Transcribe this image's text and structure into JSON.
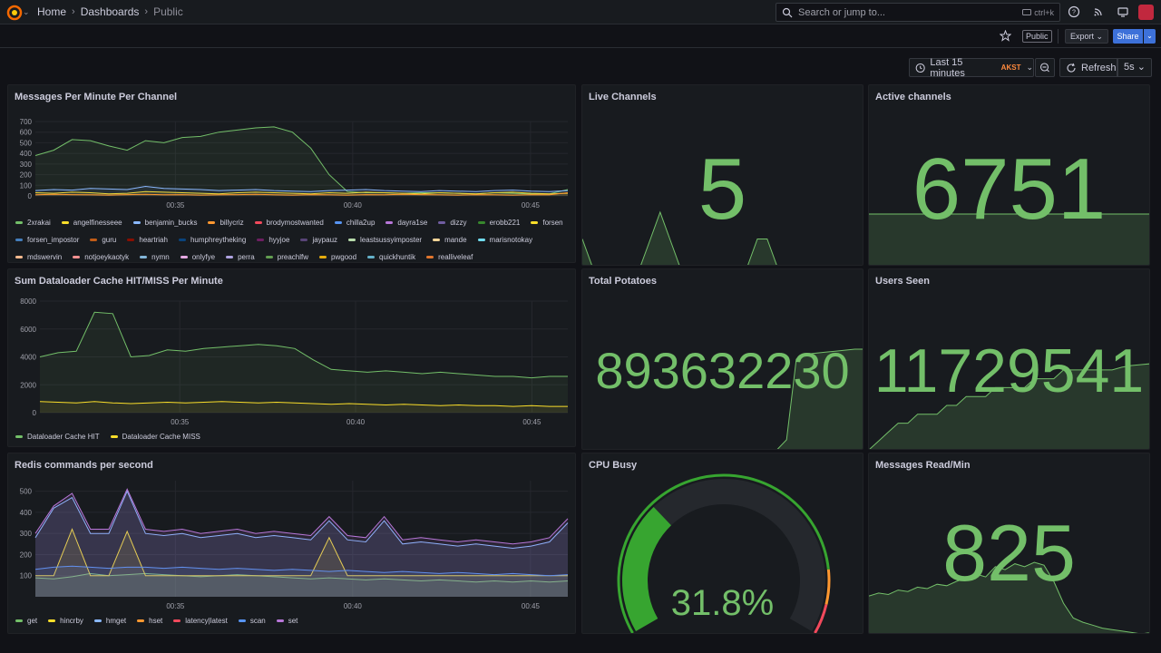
{
  "nav": {
    "breadcrumbs": [
      "Home",
      "Dashboards",
      "Public"
    ],
    "search_placeholder": "Search or jump to...",
    "search_shortcut": "ctrl+k"
  },
  "toolbar": {
    "public_badge": "Public",
    "export_label": "Export",
    "share_label": "Share"
  },
  "timecontrols": {
    "range_label": "Last 15 minutes",
    "timezone": "AKST",
    "refresh_label": "Refresh",
    "interval": "5s"
  },
  "panels": {
    "messages_per_minute": {
      "title": "Messages Per Minute Per Channel",
      "legend": [
        {
          "name": "2xrakai",
          "color": "#73bf69"
        },
        {
          "name": "angelfinesseee",
          "color": "#fade2a"
        },
        {
          "name": "benjamin_bucks",
          "color": "#8ab8ff"
        },
        {
          "name": "billycriz",
          "color": "#ff9830"
        },
        {
          "name": "brodymostwanted",
          "color": "#f2495c"
        },
        {
          "name": "chilla2up",
          "color": "#5794f2"
        },
        {
          "name": "dayra1se",
          "color": "#b877d9"
        },
        {
          "name": "dizzy",
          "color": "#705da0"
        },
        {
          "name": "erobb221",
          "color": "#37872d"
        },
        {
          "name": "forsen",
          "color": "#fade2a"
        },
        {
          "name": "forsen_impostor",
          "color": "#447ebc"
        },
        {
          "name": "guru",
          "color": "#c15c17"
        },
        {
          "name": "heartriah",
          "color": "#890f02"
        },
        {
          "name": "humphreytheking",
          "color": "#0a437c"
        },
        {
          "name": "hyyjoe",
          "color": "#6d1f62"
        },
        {
          "name": "jaypauz",
          "color": "#584477"
        },
        {
          "name": "leastsussyimposter",
          "color": "#b7dbab"
        },
        {
          "name": "mande",
          "color": "#f4d598"
        },
        {
          "name": "marisnotokay",
          "color": "#70dbed"
        },
        {
          "name": "mdswervin",
          "color": "#f9ba8f"
        },
        {
          "name": "notjoeykaotyk",
          "color": "#f29191"
        },
        {
          "name": "nymn",
          "color": "#82b5d8"
        },
        {
          "name": "onlyfye",
          "color": "#e5a8e2"
        },
        {
          "name": "perra",
          "color": "#aea2e0"
        },
        {
          "name": "preachlfw",
          "color": "#629e51"
        },
        {
          "name": "pwgood",
          "color": "#e5ac0e"
        },
        {
          "name": "quickhuntik",
          "color": "#64b0c8"
        },
        {
          "name": "realliveleaf",
          "color": "#e0752d"
        }
      ],
      "chart_data": {
        "type": "line",
        "x_ticks": [
          "00:35",
          "00:40",
          "00:45"
        ],
        "ylim": [
          0,
          700
        ],
        "y_ticks": [
          0,
          100,
          200,
          300,
          400,
          500,
          600,
          700
        ],
        "series": [
          {
            "name": "2xrakai",
            "values": [
              380,
              430,
              530,
              520,
              470,
              430,
              520,
              500,
              550,
              560,
              600,
              620,
              640,
              650,
              600,
              450,
              200,
              40,
              30,
              30,
              25,
              30,
              30,
              25,
              20,
              30,
              25,
              20,
              20,
              60
            ]
          },
          {
            "name": "angelfinesseee",
            "values": [
              30,
              25,
              35,
              30,
              20,
              25,
              40,
              35,
              30,
              25,
              20,
              30,
              35,
              30,
              25,
              20,
              30,
              25,
              35,
              30,
              25,
              20,
              30,
              25,
              20,
              30,
              35,
              25,
              20,
              25
            ]
          },
          {
            "name": "benjamin_bucks",
            "values": [
              50,
              60,
              55,
              70,
              65,
              60,
              90,
              70,
              65,
              60,
              50,
              55,
              60,
              50,
              45,
              40,
              50,
              55,
              60,
              50,
              45,
              40,
              50,
              45,
              40,
              50,
              55,
              45,
              40,
              50
            ]
          },
          {
            "name": "billycriz",
            "values": [
              10,
              15,
              12,
              10,
              8,
              12,
              15,
              10,
              12,
              8,
              10,
              12,
              15,
              10,
              8,
              12,
              10,
              8,
              12,
              10,
              15,
              12,
              10,
              8,
              12,
              10,
              8,
              12,
              10,
              30
            ]
          }
        ]
      }
    },
    "live_channels": {
      "title": "Live Channels",
      "value": "5",
      "sparkline": [
        2,
        1,
        1,
        1,
        1,
        1,
        1,
        2,
        3,
        2,
        1,
        1,
        1,
        1,
        1,
        1,
        1,
        1,
        2,
        2,
        1,
        1,
        1,
        1,
        1,
        1,
        1,
        1,
        1,
        1
      ]
    },
    "active_channels": {
      "title": "Active channels",
      "value": "6751",
      "sparkline": [
        6751,
        6751,
        6751,
        6751,
        6751,
        6751,
        6751,
        6751,
        6751,
        6751,
        6751,
        6751,
        6751,
        6751,
        6751,
        6751,
        6751,
        6751,
        6751,
        6751,
        6751,
        6751,
        6751,
        6751,
        6751,
        6751,
        6751,
        6751,
        6751,
        6751
      ]
    },
    "dataloader_cache": {
      "title": "Sum Dataloader Cache HIT/MISS Per Minute",
      "legend": [
        {
          "name": "Dataloader Cache HIT",
          "color": "#73bf69"
        },
        {
          "name": "Dataloader Cache MISS",
          "color": "#fade2a"
        }
      ],
      "chart_data": {
        "type": "line",
        "x_ticks": [
          "00:35",
          "00:40",
          "00:45"
        ],
        "ylim": [
          0,
          8000
        ],
        "y_ticks": [
          0,
          2000,
          4000,
          6000,
          8000
        ],
        "series": [
          {
            "name": "Dataloader Cache HIT",
            "values": [
              4000,
              4300,
              4400,
              7200,
              7100,
              4000,
              4100,
              4500,
              4400,
              4600,
              4700,
              4800,
              4900,
              4800,
              4600,
              3800,
              3100,
              3000,
              2900,
              3000,
              2900,
              2800,
              2900,
              2800,
              2700,
              2600,
              2600,
              2500,
              2600,
              2600
            ]
          },
          {
            "name": "Dataloader Cache MISS",
            "values": [
              800,
              750,
              700,
              800,
              700,
              650,
              700,
              750,
              700,
              750,
              800,
              750,
              700,
              750,
              700,
              650,
              600,
              650,
              600,
              550,
              600,
              550,
              500,
              550,
              500,
              500,
              450,
              500,
              450,
              450
            ]
          }
        ]
      }
    },
    "total_potatoes": {
      "title": "Total Potatoes",
      "value": "893632230",
      "sparkline": [
        0,
        0,
        0,
        0,
        0,
        0,
        0,
        0,
        0,
        0,
        0,
        0,
        0,
        0,
        0,
        0,
        0,
        0,
        0,
        0,
        0,
        1,
        9,
        9.5,
        9.6,
        9.7,
        9.8,
        9.9,
        10,
        10
      ]
    },
    "users_seen": {
      "title": "Users Seen",
      "value": "11729541",
      "sparkline": [
        0,
        1,
        2,
        3,
        3,
        4,
        4,
        4,
        5,
        5,
        6,
        6,
        6,
        7,
        7,
        7,
        7,
        8,
        8,
        8,
        9,
        9,
        9,
        9,
        9,
        9,
        9.3,
        9.5,
        9.6,
        9.7
      ]
    },
    "redis": {
      "title": "Redis commands per second",
      "legend": [
        {
          "name": "get",
          "color": "#73bf69"
        },
        {
          "name": "hincrby",
          "color": "#fade2a"
        },
        {
          "name": "hmget",
          "color": "#8ab8ff"
        },
        {
          "name": "hset",
          "color": "#ff9830"
        },
        {
          "name": "latency|latest",
          "color": "#f2495c"
        },
        {
          "name": "scan",
          "color": "#5794f2"
        },
        {
          "name": "set",
          "color": "#b877d9"
        }
      ],
      "chart_data": {
        "type": "line",
        "x_ticks": [
          "00:35",
          "00:40",
          "00:45"
        ],
        "ylim": [
          0,
          550
        ],
        "y_ticks": [
          100,
          200,
          300,
          400,
          500
        ],
        "series": [
          {
            "name": "get",
            "values": [
              90,
              85,
              95,
              110,
              100,
              105,
              110,
              105,
              100,
              95,
              100,
              105,
              100,
              95,
              90,
              85,
              90,
              85,
              80,
              85,
              80,
              75,
              80,
              75,
              70,
              75,
              70,
              75,
              70,
              75
            ]
          },
          {
            "name": "hincrby",
            "values": [
              100,
              100,
              320,
              100,
              100,
              310,
              100,
              100,
              100,
              100,
              100,
              100,
              100,
              100,
              100,
              100,
              280,
              100,
              100,
              100,
              100,
              100,
              100,
              100,
              100,
              100,
              100,
              100,
              100,
              100
            ]
          },
          {
            "name": "hmget",
            "values": [
              280,
              420,
              470,
              300,
              300,
              500,
              300,
              290,
              300,
              280,
              290,
              300,
              280,
              290,
              280,
              270,
              360,
              270,
              260,
              360,
              250,
              260,
              250,
              240,
              250,
              240,
              230,
              240,
              260,
              350
            ]
          },
          {
            "name": "scan",
            "values": [
              130,
              140,
              145,
              140,
              135,
              140,
              140,
              135,
              140,
              135,
              130,
              135,
              130,
              125,
              130,
              125,
              120,
              125,
              120,
              115,
              120,
              115,
              110,
              115,
              110,
              105,
              110,
              105,
              100,
              105
            ]
          },
          {
            "name": "set",
            "values": [
              300,
              430,
              490,
              320,
              320,
              510,
              320,
              310,
              320,
              300,
              310,
              320,
              300,
              310,
              300,
              290,
              380,
              290,
              280,
              380,
              270,
              280,
              270,
              260,
              270,
              260,
              250,
              260,
              280,
              370
            ]
          }
        ]
      }
    },
    "cpu_busy": {
      "title": "CPU Busy",
      "value": "31.8%",
      "percent": 31.8
    },
    "messages_read": {
      "title": "Messages Read/Min",
      "value": "825",
      "sparkline": [
        3,
        3.2,
        3.1,
        3.4,
        3.3,
        3.6,
        3.5,
        3.8,
        3.7,
        4,
        4.2,
        4.5,
        4.3,
        5,
        4.8,
        5.2,
        5.0,
        5.3,
        5.1,
        4.0,
        2.5,
        1.5,
        1.2,
        1.0,
        0.8,
        0.7,
        0.6,
        0.5,
        0.4,
        0.5
      ]
    }
  }
}
